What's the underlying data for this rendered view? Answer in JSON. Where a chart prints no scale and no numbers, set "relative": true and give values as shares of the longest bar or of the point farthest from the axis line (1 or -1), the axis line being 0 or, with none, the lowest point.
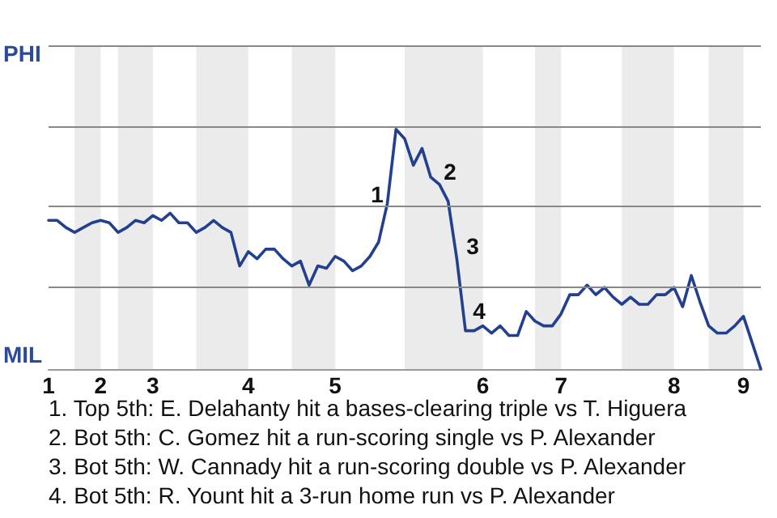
{
  "chart_data": {
    "type": "line",
    "color": "#22408f",
    "marker": "none",
    "line_style": "solid",
    "relative": true,
    "categories": [
      "1",
      null,
      null,
      null,
      null,
      null,
      "2",
      null,
      null,
      null,
      null,
      null,
      "3",
      null,
      null,
      null,
      null,
      null,
      null,
      null,
      null,
      null,
      null,
      "4",
      null,
      null,
      null,
      null,
      null,
      null,
      null,
      null,
      null,
      "5",
      null,
      null,
      null,
      null,
      null,
      null,
      null,
      null,
      null,
      null,
      null,
      null,
      null,
      null,
      null,
      null,
      "6",
      null,
      null,
      null,
      null,
      null,
      null,
      null,
      null,
      "7",
      null,
      null,
      null,
      null,
      null,
      null,
      null,
      null,
      null,
      null,
      null,
      null,
      "8",
      null,
      null,
      null,
      null,
      null,
      null,
      null,
      "9",
      null,
      null
    ],
    "values": [
      0.62,
      0.62,
      0.59,
      0.57,
      0.59,
      0.61,
      0.62,
      0.61,
      0.57,
      0.59,
      0.62,
      0.61,
      0.64,
      0.62,
      0.65,
      0.61,
      0.61,
      0.57,
      0.59,
      0.62,
      0.59,
      0.57,
      0.43,
      0.49,
      0.46,
      0.5,
      0.5,
      0.46,
      0.43,
      0.45,
      0.35,
      0.43,
      0.42,
      0.47,
      0.45,
      0.41,
      0.43,
      0.47,
      0.53,
      0.69,
      1,
      0.96,
      0.85,
      0.92,
      0.8,
      0.77,
      0.7,
      0.46,
      0.16,
      0.16,
      0.18,
      0.15,
      0.18,
      0.14,
      0.14,
      0.24,
      0.2,
      0.18,
      0.18,
      0.23,
      0.31,
      0.31,
      0.35,
      0.31,
      0.34,
      0.3,
      0.27,
      0.3,
      0.27,
      0.27,
      0.31,
      0.31,
      0.34,
      0.26,
      0.39,
      0.28,
      0.18,
      0.15,
      0.15,
      0.18,
      0.22,
      0.11,
      0
    ],
    "ref_lines": [
      {
        "axis": "y",
        "value": 0.34,
        "color": "#888888"
      },
      {
        "axis": "y",
        "value": 0.68,
        "color": "#888888"
      },
      {
        "axis": "y",
        "value": 1.01,
        "color": "#888888"
      },
      {
        "axis": "y",
        "value": 1.35,
        "color": "#888888"
      }
    ],
    "annotations": [
      "PHI",
      "MIL",
      "1",
      "2",
      "3",
      "4",
      "1. Top 5th: E. Delahanty hit a bases-clearing triple vs T. Higuera",
      "2. Bot 5th: C. Gomez hit a run-scoring single vs P. Alexander",
      "3. Bot 5th: W. Cannady hit a run-scoring double vs P. Alexander",
      "4. Bot 5th: R. Yount hit a 3-run home run vs P. Alexander"
    ]
  }
}
